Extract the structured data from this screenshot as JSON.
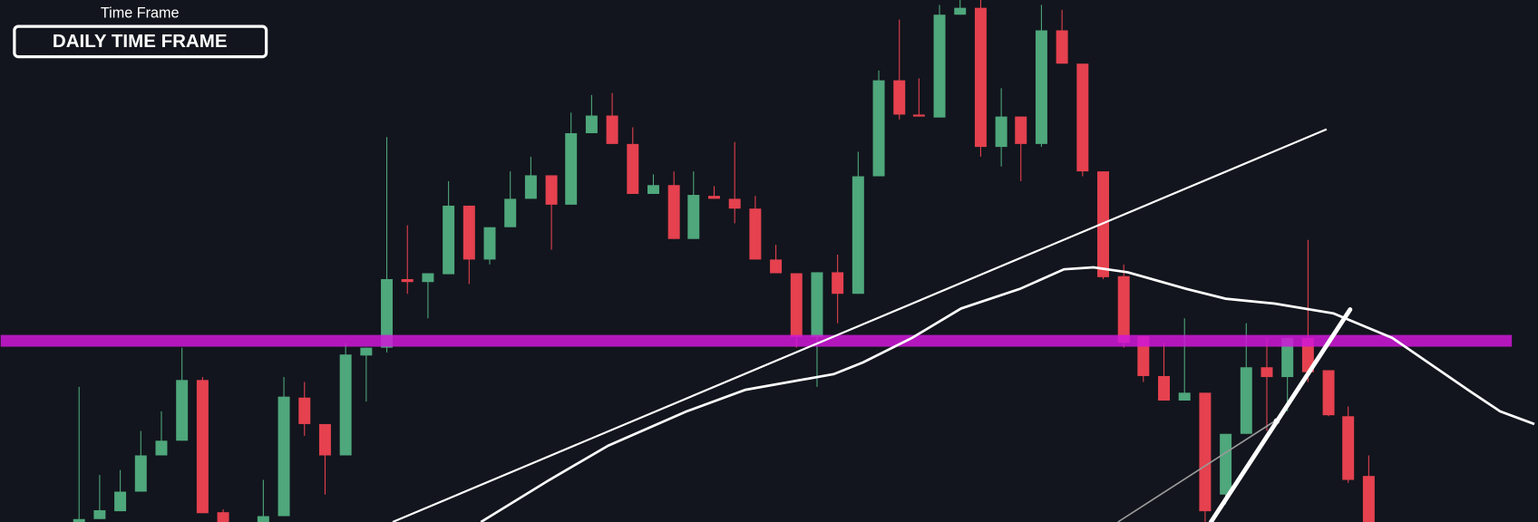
{
  "label": {
    "caption": "Time Frame",
    "title": "DAILY TIME FRAME"
  }
}
